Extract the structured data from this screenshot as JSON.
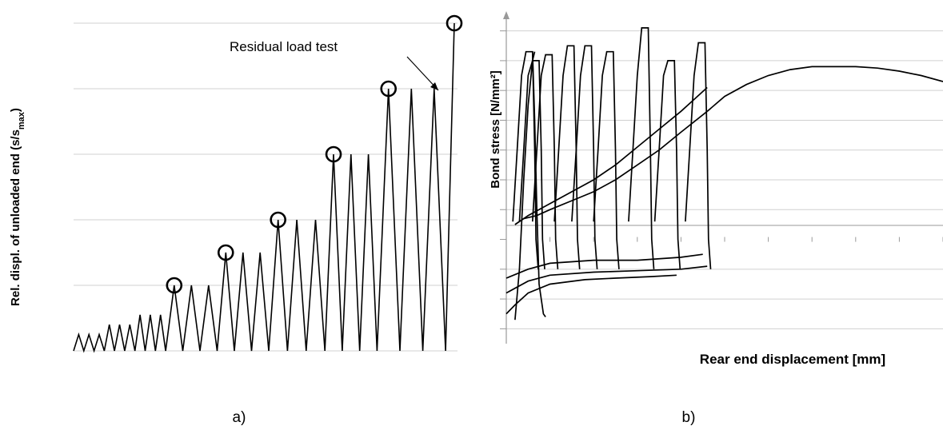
{
  "chart_data": [
    {
      "type": "line",
      "panel_label": "a)",
      "ylabel": "Rel. displ. of unloaded end (s/s",
      "ylabel_sub": "max",
      "ylabel_close": ")",
      "annotation": "Residual load test",
      "ylim": [
        0,
        1
      ],
      "grid": true,
      "series": [
        {
          "values": [
            0,
            0.05,
            0,
            0.05,
            0,
            0.05,
            0,
            0.08,
            0,
            0.08,
            0,
            0.08,
            0,
            0.11,
            0,
            0.11,
            0,
            0.11,
            0,
            0.2,
            0,
            0.2,
            0,
            0.2,
            0,
            0.3,
            0,
            0.3,
            0,
            0.3,
            0,
            0.4,
            0,
            0.4,
            0,
            0.4,
            0,
            0.6,
            0,
            0.6,
            0,
            0.6,
            0,
            0.8,
            0,
            0.8,
            0,
            0.8,
            0,
            1.0
          ],
          "marked_peaks": [
            19,
            25,
            31,
            37,
            43,
            49
          ]
        }
      ]
    },
    {
      "type": "line",
      "panel_label": "b)",
      "xlabel": "Rear end displacement [mm]",
      "ylabel": "Bond stress [N/mm²]",
      "ylim": [
        -3.5,
        7.5
      ],
      "xlim": [
        0,
        1.0
      ],
      "grid": true,
      "curves": [
        {
          "x": [
            0.02,
            0.03,
            0.04,
            0.05,
            0.06,
            0.065
          ],
          "y": [
            -2.7,
            -1.0,
            2.0,
            4.5,
            6.0,
            6.3
          ]
        },
        {
          "x": [
            0.06,
            0.065,
            0.07,
            0.075,
            0.085,
            0.09
          ],
          "y": [
            6.3,
            4.0,
            1.0,
            -1.5,
            -2.5,
            -2.6
          ]
        },
        {
          "x": [
            0.0,
            0.02,
            0.05,
            0.1,
            0.18,
            0.25,
            0.33,
            0.39
          ],
          "y": [
            -2.5,
            -2.2,
            -1.8,
            -1.5,
            -1.35,
            -1.3,
            -1.25,
            -1.2
          ]
        },
        {
          "x": [
            0.0,
            0.05,
            0.1,
            0.2,
            0.3,
            0.4,
            0.46
          ],
          "y": [
            -1.8,
            -1.4,
            -1.2,
            -1.1,
            -1.05,
            -1.0,
            -0.9
          ]
        },
        {
          "x": [
            0.0,
            0.05,
            0.1,
            0.2,
            0.3,
            0.4,
            0.45
          ],
          "y": [
            -1.3,
            -1.0,
            -0.8,
            -0.7,
            -0.7,
            -0.6,
            -0.5
          ]
        },
        {
          "x": [
            0.02,
            0.04,
            0.07,
            0.1,
            0.15,
            0.2,
            0.25,
            0.3,
            0.35,
            0.4,
            0.46
          ],
          "y": [
            0.5,
            0.7,
            0.8,
            1.0,
            1.3,
            1.6,
            2.0,
            2.5,
            3.0,
            3.6,
            4.3
          ]
        },
        {
          "x": [
            0.02,
            0.05,
            0.1,
            0.15,
            0.2,
            0.25,
            0.3,
            0.35,
            0.4,
            0.46
          ],
          "y": [
            0.5,
            0.8,
            1.2,
            1.6,
            2.0,
            2.5,
            3.1,
            3.7,
            4.3,
            5.1
          ]
        },
        {
          "x": [
            0.46,
            0.5,
            0.55,
            0.6,
            0.65,
            0.7,
            0.75,
            0.8,
            0.85,
            0.9,
            0.95,
            1.0
          ],
          "y": [
            4.3,
            4.8,
            5.2,
            5.5,
            5.7,
            5.8,
            5.8,
            5.8,
            5.75,
            5.65,
            5.5,
            5.3
          ]
        }
      ]
    }
  ]
}
